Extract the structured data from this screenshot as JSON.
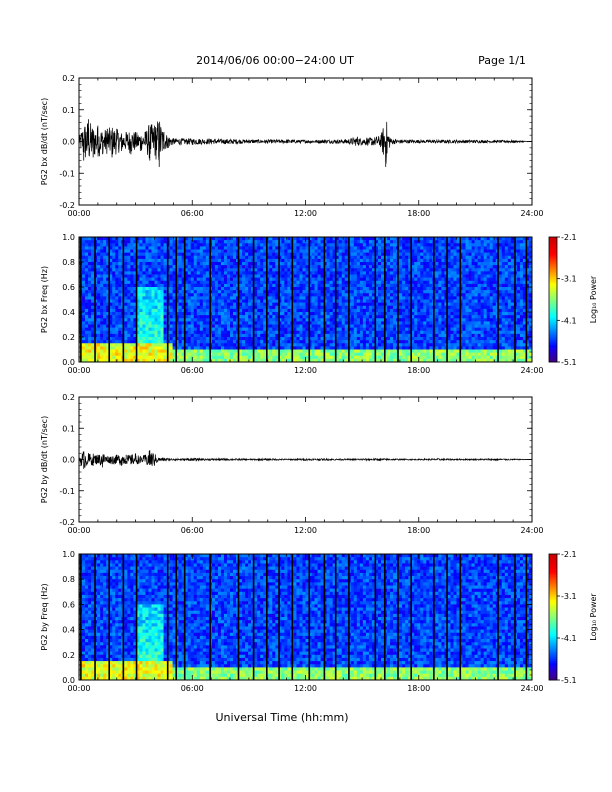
{
  "header": {
    "title": "2014/06/06  00:00−24:00 UT",
    "page": "Page 1/1"
  },
  "footer": {
    "xlabel": "Universal Time (hh:mm)"
  },
  "chart_data": [
    {
      "type": "line",
      "ylabel": "PG2 bx dB/dt (nT/sec)",
      "xlim": [
        0,
        24
      ],
      "ylim": [
        -0.2,
        0.2
      ],
      "yticks": [
        "0.2",
        "0.1",
        "0.0",
        "-0.1",
        "-0.2"
      ],
      "xticks": [
        "00:00",
        "06:00",
        "12:00",
        "18:00",
        "24:00"
      ],
      "series": [
        {
          "x": [
            0,
            0.25,
            0.5,
            0.75,
            1,
            1.25,
            1.5,
            1.75,
            2,
            2.25,
            2.5,
            2.75,
            3,
            3.25,
            3.5,
            3.75,
            4,
            4.25,
            4.5,
            4.75,
            5,
            6,
            7,
            8,
            9,
            10,
            11,
            12,
            13,
            14,
            14.75,
            15,
            15.25,
            15.5,
            16,
            16.25,
            16.5,
            17,
            18,
            19,
            20,
            21,
            22,
            23,
            24
          ],
          "y": [
            0.01,
            -0.06,
            0.07,
            -0.05,
            0.05,
            -0.04,
            0.04,
            -0.05,
            0.04,
            -0.03,
            0.03,
            -0.04,
            0.03,
            -0.03,
            0.03,
            -0.06,
            0.05,
            -0.08,
            0.03,
            -0.02,
            0.01,
            -0.01,
            0.008,
            -0.008,
            0.006,
            -0.006,
            0.006,
            -0.005,
            0.006,
            -0.006,
            0.015,
            -0.01,
            0.012,
            -0.012,
            0.02,
            -0.08,
            0.01,
            -0.006,
            0.005,
            -0.005,
            0.005,
            -0.005,
            0.004,
            -0.004,
            0.0
          ]
        }
      ]
    },
    {
      "type": "heatmap",
      "ylabel": "PG2 bx Freq (Hz)",
      "xlim": [
        0,
        24
      ],
      "ylim": [
        0.0,
        1.0
      ],
      "yticks": [
        "1.0",
        "0.8",
        "0.6",
        "0.4",
        "0.2",
        "0.0"
      ],
      "xticks": [
        "00:00",
        "06:00",
        "12:00",
        "18:00",
        "24:00"
      ],
      "colorbar": {
        "label": "Log₁₀ Power",
        "range": [
          -5.1,
          -2.1
        ],
        "ticks": [
          "-2.1",
          "-3.1",
          "-4.1",
          "-5.1"
        ]
      },
      "gap_lines_hours": [
        0.1,
        0.85,
        1.6,
        2.35,
        3.05,
        4.7,
        5.15,
        5.6,
        6.95,
        8.45,
        9.25,
        9.95,
        10.6,
        11.3,
        12.2,
        13.0,
        13.6,
        14.3,
        15.7,
        16.2,
        16.9,
        17.6,
        18.8,
        19.5,
        20.2,
        22.2,
        23.1,
        23.7
      ],
      "features": [
        {
          "name": "low-frequency band",
          "freq_hz": [
            0.0,
            0.1
          ],
          "log_power": -3.6
        },
        {
          "name": "morning enhancement",
          "hours": [
            3.0,
            4.5
          ],
          "freq_hz": [
            0.0,
            0.6
          ],
          "log_power": -3.8
        }
      ]
    },
    {
      "type": "line",
      "ylabel": "PG2 by dB/dt (nT/sec)",
      "xlim": [
        0,
        24
      ],
      "ylim": [
        -0.2,
        0.2
      ],
      "yticks": [
        "0.2",
        "0.1",
        "0.0",
        "-0.1",
        "-0.2"
      ],
      "xticks": [
        "00:00",
        "06:00",
        "12:00",
        "18:00",
        "24:00"
      ],
      "series": [
        {
          "x": [
            0,
            0.25,
            0.5,
            0.75,
            1,
            1.25,
            1.5,
            1.75,
            2,
            2.25,
            2.5,
            2.75,
            3,
            3.25,
            3.5,
            3.75,
            4,
            4.25,
            4.5,
            5,
            6,
            7,
            8,
            9,
            10,
            11,
            12,
            13,
            14,
            15,
            16,
            17,
            18,
            19,
            20,
            21,
            22,
            23,
            24
          ],
          "y": [
            0.01,
            -0.03,
            0.02,
            -0.02,
            0.015,
            -0.025,
            0.01,
            -0.015,
            0.015,
            -0.02,
            0.015,
            -0.015,
            0.02,
            -0.01,
            0.015,
            0.03,
            -0.02,
            0.005,
            -0.005,
            0.003,
            -0.004,
            0.003,
            -0.003,
            0.002,
            -0.003,
            0.002,
            -0.003,
            0.003,
            -0.002,
            0.003,
            -0.003,
            0.002,
            -0.002,
            0.003,
            -0.002,
            0.002,
            -0.003,
            0.002,
            0.0
          ]
        }
      ]
    },
    {
      "type": "heatmap",
      "ylabel": "PG2 by Freq (Hz)",
      "xlim": [
        0,
        24
      ],
      "ylim": [
        0.0,
        1.0
      ],
      "yticks": [
        "1.0",
        "0.8",
        "0.6",
        "0.4",
        "0.2",
        "0.0"
      ],
      "xticks": [
        "00:00",
        "06:00",
        "12:00",
        "18:00",
        "24:00"
      ],
      "colorbar": {
        "label": "Log₁₀ Power",
        "range": [
          -5.1,
          -2.1
        ],
        "ticks": [
          "-2.1",
          "-3.1",
          "-4.1",
          "-5.1"
        ]
      },
      "gap_lines_hours": [
        0.1,
        0.85,
        1.6,
        2.35,
        3.05,
        4.7,
        5.15,
        5.6,
        6.95,
        8.45,
        9.25,
        9.95,
        10.6,
        11.3,
        12.2,
        13.0,
        13.6,
        14.3,
        15.7,
        16.2,
        16.9,
        17.6,
        18.8,
        19.5,
        20.2,
        22.2,
        23.1,
        23.7
      ],
      "features": [
        {
          "name": "low-frequency band",
          "freq_hz": [
            0.0,
            0.1
          ],
          "log_power": -3.6
        },
        {
          "name": "morning enhancement",
          "hours": [
            3.0,
            4.5
          ],
          "freq_hz": [
            0.0,
            0.6
          ],
          "log_power": -3.8
        }
      ]
    }
  ]
}
